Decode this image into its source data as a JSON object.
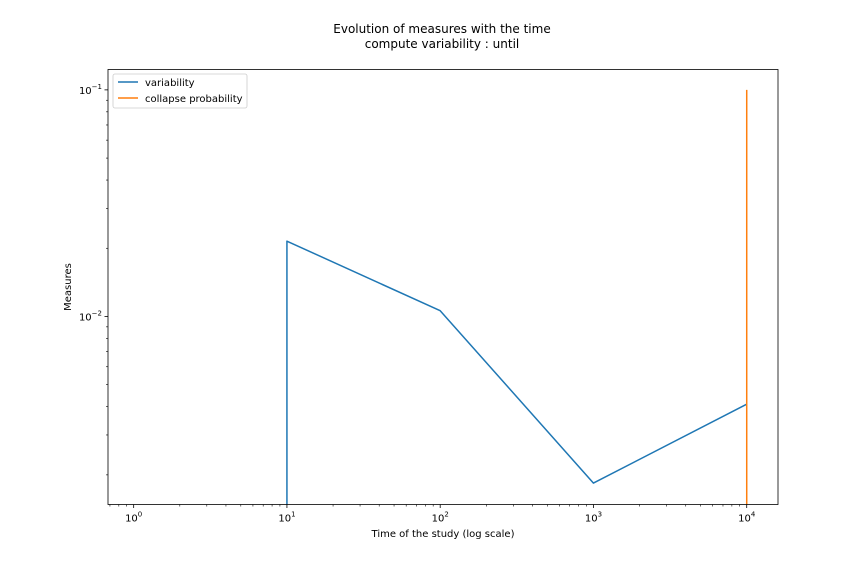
{
  "chart_data": {
    "type": "line",
    "title": "Evolution of measures with the time",
    "subtitle": "compute variability : until",
    "xlabel": "Time of the study (log scale)",
    "ylabel": "Measures",
    "xscale": "log",
    "yscale": "log",
    "xlim": [
      0.68,
      16000
    ],
    "ylim": [
      0.00148,
      0.123
    ],
    "grid": false,
    "legend_position": "top-left",
    "x_major_ticks": [
      {
        "value": 1,
        "base": "10",
        "exp": "0"
      },
      {
        "value": 10,
        "base": "10",
        "exp": "1"
      },
      {
        "value": 100,
        "base": "10",
        "exp": "2"
      },
      {
        "value": 1000,
        "base": "10",
        "exp": "3"
      },
      {
        "value": 10000,
        "base": "10",
        "exp": "4"
      }
    ],
    "y_major_ticks": [
      {
        "value": 0.01,
        "base": "10",
        "exp": "−2"
      },
      {
        "value": 0.1,
        "base": "10",
        "exp": "−1"
      }
    ],
    "series": [
      {
        "name": "variability",
        "color": "#1f77b4",
        "points": [
          {
            "x": 10,
            "y": 0.00148
          },
          {
            "x": 10,
            "y": 0.0215
          },
          {
            "x": 100,
            "y": 0.0106
          },
          {
            "x": 1000,
            "y": 0.00184
          },
          {
            "x": 10000,
            "y": 0.0041
          }
        ]
      },
      {
        "name": "collapse probability",
        "color": "#ff7f0e",
        "points": [
          {
            "x": 10000,
            "y": 0.00148
          },
          {
            "x": 10000,
            "y": 0.1
          }
        ]
      }
    ]
  }
}
